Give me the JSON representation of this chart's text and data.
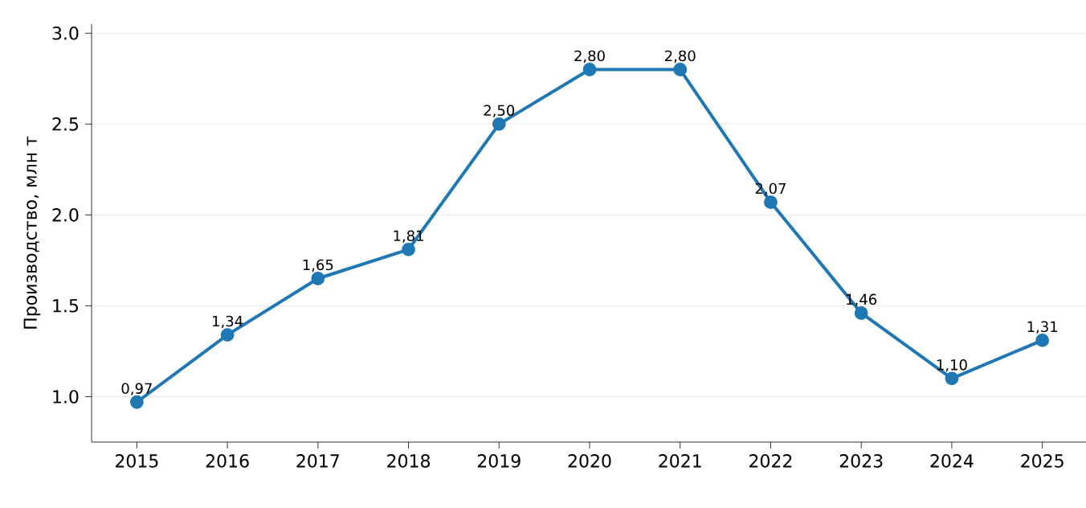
{
  "chart_data": {
    "type": "line",
    "ylabel": "Производство, млн т",
    "categories": [
      "2015",
      "2016",
      "2017",
      "2018",
      "2019",
      "2020",
      "2021",
      "2022",
      "2023",
      "2024",
      "2025"
    ],
    "values": [
      0.97,
      1.34,
      1.65,
      1.81,
      2.5,
      2.8,
      2.8,
      2.07,
      1.46,
      1.1,
      1.31
    ],
    "value_labels": [
      "0,97",
      "1,34",
      "1,65",
      "1,81",
      "2,50",
      "2,80",
      "2,80",
      "2,07",
      "1,46",
      "1,10",
      "1,31"
    ],
    "color": "#1f77b4",
    "marker": "circle",
    "line_style": "solid",
    "grid": "y",
    "ylim": [
      0.75,
      3.05
    ],
    "yticks": [
      {
        "value": 1,
        "label": "1.0"
      },
      {
        "value": 1.5,
        "label": "1.5"
      },
      {
        "value": 2,
        "label": "2.0"
      },
      {
        "value": 2.5,
        "label": "2.5"
      },
      {
        "value": 3,
        "label": "3.0"
      }
    ]
  }
}
